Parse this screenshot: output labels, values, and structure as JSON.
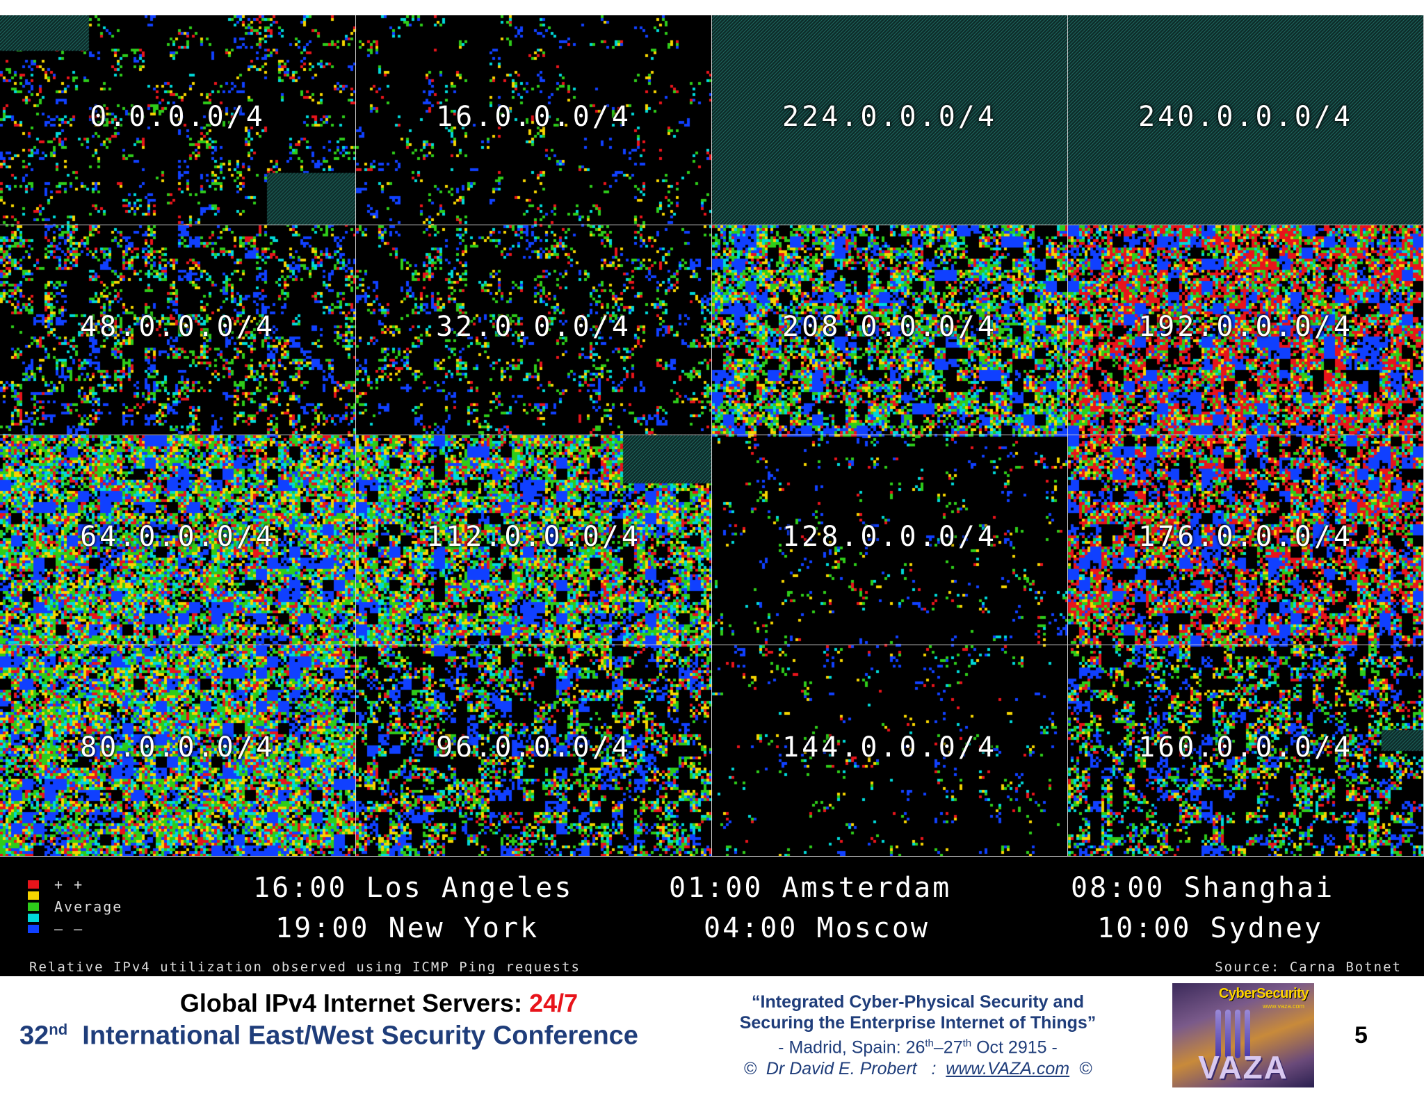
{
  "cells": [
    {
      "label": "0.0.0.0/4",
      "fill": 0.28,
      "hatch": [
        [
          0,
          0,
          0.25,
          0.17
        ],
        [
          0.75,
          0.75,
          0.25,
          0.25
        ]
      ]
    },
    {
      "label": "16.0.0.0/4",
      "fill": 0.22,
      "hatch": []
    },
    {
      "label": "224.0.0.0/4",
      "fill": 0.0,
      "hatch": [
        [
          0,
          0,
          1,
          1
        ]
      ]
    },
    {
      "label": "240.0.0.0/4",
      "fill": 0.0,
      "hatch": [
        [
          0,
          0,
          1,
          1
        ]
      ]
    },
    {
      "label": "48.0.0.0/4",
      "fill": 0.45,
      "hatch": []
    },
    {
      "label": "32.0.0.0/4",
      "fill": 0.35,
      "hatch": []
    },
    {
      "label": "208.0.0.0/4",
      "fill": 0.75,
      "hatch": []
    },
    {
      "label": "192.0.0.0/4",
      "fill": 0.82,
      "hatch": []
    },
    {
      "label": "64.0.0.0/4",
      "fill": 0.85,
      "hatch": []
    },
    {
      "label": "112.0.0.0/4",
      "fill": 0.8,
      "hatch": [
        [
          0.75,
          0,
          0.25,
          0.23
        ]
      ]
    },
    {
      "label": "128.0.0.0/4",
      "fill": 0.18,
      "hatch": []
    },
    {
      "label": "176.0.0.0/4",
      "fill": 0.78,
      "hatch": []
    },
    {
      "label": "80.0.0.0/4",
      "fill": 0.85,
      "hatch": []
    },
    {
      "label": "96.0.0.0/4",
      "fill": 0.6,
      "hatch": []
    },
    {
      "label": "144.0.0.0/4",
      "fill": 0.16,
      "hatch": []
    },
    {
      "label": "160.0.0.0/4",
      "fill": 0.55,
      "hatch": [
        [
          0.88,
          0.4,
          0.12,
          0.1
        ]
      ]
    }
  ],
  "colors": {
    "high": "#e8141b",
    "above": "#f5d400",
    "average": "#2ecc1a",
    "below": "#00d8d8",
    "low": "#1040ff",
    "hatch": "#2a8a80"
  },
  "legend": [
    {
      "label": "+ +",
      "color": "#e8141b"
    },
    {
      "label": "",
      "color": "#f5d400"
    },
    {
      "label": "Average",
      "color": "#2ecc1a"
    },
    {
      "label": "",
      "color": "#00d8d8"
    },
    {
      "label": "– –",
      "color": "#1040ff"
    }
  ],
  "times": {
    "la": "16:00 Los Angeles",
    "amsterdam": "01:00 Amsterdam",
    "shanghai": "08:00 Shanghai",
    "ny": "19:00 New York",
    "moscow": "04:00 Moscow",
    "sydney": "10:00 Sydney"
  },
  "caption_left": "Relative IPv4 utilization observed using ICMP Ping requests",
  "caption_right": "Source: Carna Botnet",
  "footer": {
    "title_main": "Global IPv4 Internet Servers: ",
    "title_accent": "24/7",
    "conf_num": "32",
    "conf_sup": "nd",
    "conf_text": "  International East/West Security Conference",
    "quote_line1": "“Integrated Cyber-Physical Security and",
    "quote_line2": "Securing the Enterprise Internet of Things”",
    "loc_pre": "- Madrid, Spain: 26",
    "loc_sup1": "th",
    "loc_mid": "–27",
    "loc_sup2": "th",
    "loc_post": " Oct 2915 -",
    "author_pre": "©  Dr David E. Probert   :  ",
    "author_link": "www.VAZA.com",
    "author_post": "  ©",
    "logo_top": "CyberSecurity",
    "logo_url": "www.vaza.com",
    "logo_main": "VAZA",
    "page_number": "5"
  }
}
